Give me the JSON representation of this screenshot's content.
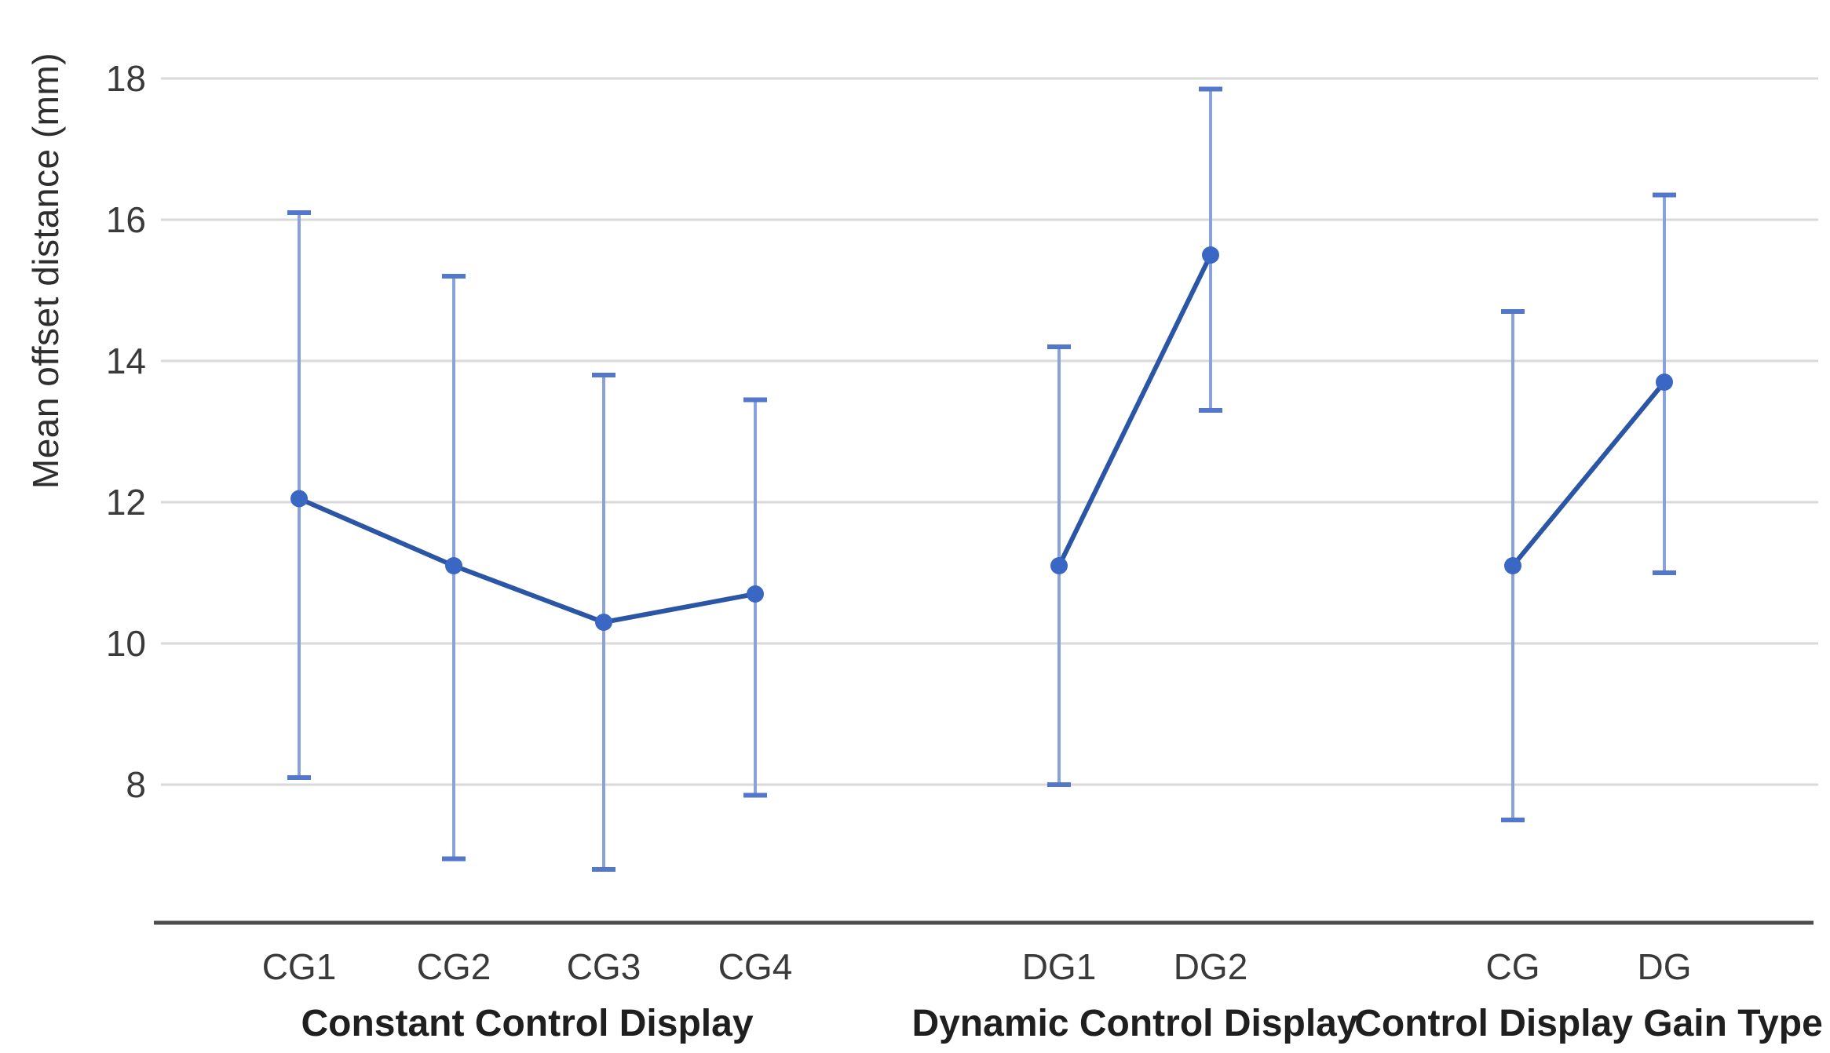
{
  "chart_data": {
    "type": "line",
    "title": "",
    "ylabel": "Mean offset distance (mm)",
    "xlabel": "",
    "y_ticks": [
      8,
      10,
      12,
      14,
      16,
      18
    ],
    "ylim": [
      6.1,
      18.6
    ],
    "grid": true,
    "legend": "none",
    "marker": "circle",
    "error_bars": true,
    "groups": [
      {
        "label": "Constant Control Display",
        "points": [
          {
            "x_label": "CG1",
            "mean": 12.05,
            "upper": 16.1,
            "lower": 8.1
          },
          {
            "x_label": "CG2",
            "mean": 11.1,
            "upper": 15.2,
            "lower": 6.95
          },
          {
            "x_label": "CG3",
            "mean": 10.3,
            "upper": 13.8,
            "lower": 6.8
          },
          {
            "x_label": "CG4",
            "mean": 10.7,
            "upper": 13.45,
            "lower": 7.85
          }
        ]
      },
      {
        "label": "Dynamic Control Display",
        "points": [
          {
            "x_label": "DG1",
            "mean": 11.1,
            "upper": 14.2,
            "lower": 8.0
          },
          {
            "x_label": "DG2",
            "mean": 15.5,
            "upper": 17.85,
            "lower": 13.3
          }
        ]
      },
      {
        "label": "Control Display Gain Type",
        "points": [
          {
            "x_label": "CG",
            "mean": 11.1,
            "upper": 14.7,
            "lower": 7.5
          },
          {
            "x_label": "DG",
            "mean": 13.7,
            "upper": 16.35,
            "lower": 11.0
          }
        ]
      }
    ]
  },
  "colors": {
    "series_line": "#2b55a5",
    "marker_fill": "#3a67c3",
    "error_bar_line": "#8aa2dc",
    "error_bar_cap": "#5377cb",
    "gridline": "#d9d9d9",
    "axis_line": "#4d4d4d",
    "tick_text": "#3a3a3a",
    "group_text": "#1f1f1f",
    "background": "#ffffff"
  }
}
